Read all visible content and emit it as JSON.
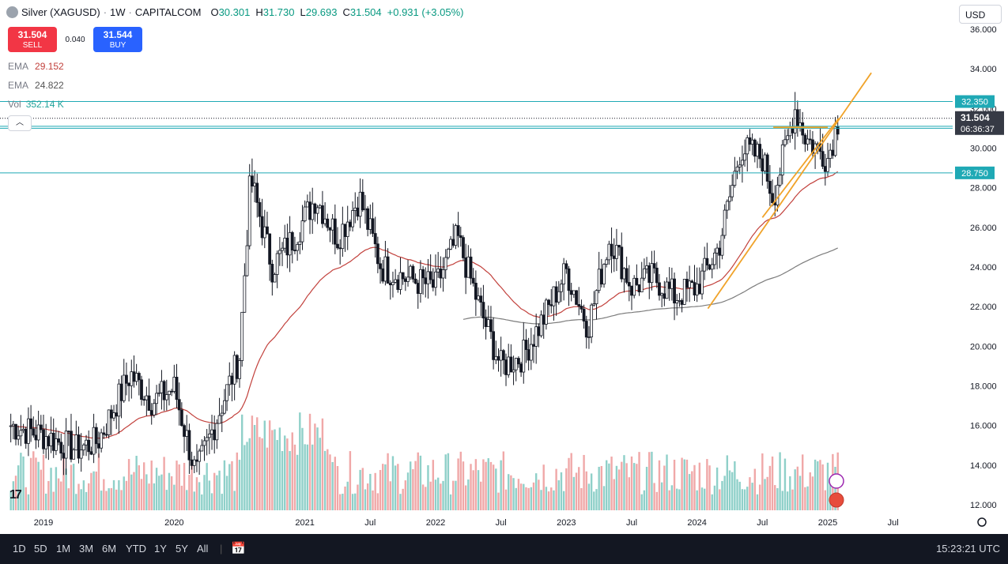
{
  "header": {
    "symbol_title": "Silver (XAGUSD)",
    "interval": "1W",
    "source": "CAPITALCOM",
    "open_label": "O",
    "open": "30.301",
    "high_label": "H",
    "high": "31.730",
    "low_label": "L",
    "low": "29.693",
    "close_label": "C",
    "close": "31.504",
    "change": "+0.931 (+3.05%)"
  },
  "trade": {
    "sell_price": "31.504",
    "sell_label": "SELL",
    "spread": "0.040",
    "buy_price": "31.544",
    "buy_label": "BUY"
  },
  "indicators": [
    {
      "name": "EMA",
      "value": "29.152",
      "color": "#c2413c"
    },
    {
      "name": "EMA",
      "value": "24.822",
      "color": "#555555"
    },
    {
      "name": "Vol",
      "value": "352.14 K",
      "color": "#22a39a"
    }
  ],
  "currency": "USD",
  "bottom": {
    "timeframes": [
      "1D",
      "5D",
      "1M",
      "3M",
      "6M",
      "YTD",
      "1Y",
      "5Y",
      "All"
    ],
    "clock": "15:23:21 UTC"
  },
  "chart_data": {
    "type": "candlestick",
    "ylim": [
      12.0,
      36.0
    ],
    "y_ticks": [
      "12.000",
      "14.000",
      "16.000",
      "18.000",
      "20.000",
      "22.000",
      "24.000",
      "26.000",
      "28.000",
      "30.000",
      "32.000",
      "34.000",
      "36.000"
    ],
    "x_ticks": [
      "2019",
      "2020",
      "2021",
      "Jul",
      "2022",
      "Jul",
      "2023",
      "Jul",
      "2024",
      "Jul",
      "2025",
      "Jul"
    ],
    "horizontal_levels": [
      {
        "label": "32.350",
        "value": 32.35
      },
      {
        "label": "31.000",
        "value": 31.0
      },
      {
        "label": "28.750",
        "value": 28.75
      },
      {
        "label": "",
        "value": 31.1
      }
    ],
    "current_price": {
      "value": 31.504,
      "label": "31.504",
      "countdown": "06:36:37"
    },
    "approx_weekly_close_path": [
      [
        "2018-10",
        16.0
      ],
      [
        "2019-01",
        15.5
      ],
      [
        "2019-04",
        14.8
      ],
      [
        "2019-06",
        15.2
      ],
      [
        "2019-08",
        17.5
      ],
      [
        "2019-09",
        18.6
      ],
      [
        "2019-11",
        17.2
      ],
      [
        "2020-01",
        17.9
      ],
      [
        "2020-03",
        13.5
      ],
      [
        "2020-05",
        16.5
      ],
      [
        "2020-07",
        19.5
      ],
      [
        "2020-08",
        28.5
      ],
      [
        "2020-10",
        24.0
      ],
      [
        "2020-12",
        25.5
      ],
      [
        "2021-02",
        27.5
      ],
      [
        "2021-04",
        25.5
      ],
      [
        "2021-06",
        27.5
      ],
      [
        "2021-08",
        24.0
      ],
      [
        "2021-10",
        23.5
      ],
      [
        "2022-01",
        23.0
      ],
      [
        "2022-03",
        25.5
      ],
      [
        "2022-05",
        22.0
      ],
      [
        "2022-07",
        19.0
      ],
      [
        "2022-09",
        19.5
      ],
      [
        "2022-11",
        21.5
      ],
      [
        "2023-01",
        23.8
      ],
      [
        "2023-03",
        21.0
      ],
      [
        "2023-05",
        25.5
      ],
      [
        "2023-07",
        23.0
      ],
      [
        "2023-09",
        23.5
      ],
      [
        "2023-11",
        22.5
      ],
      [
        "2024-01",
        23.0
      ],
      [
        "2024-03",
        25.0
      ],
      [
        "2024-05",
        30.0
      ],
      [
        "2024-07",
        29.5
      ],
      [
        "2024-08",
        27.5
      ],
      [
        "2024-10",
        32.0
      ],
      [
        "2024-11",
        30.5
      ],
      [
        "2025-01",
        29.5
      ],
      [
        "2025-02",
        31.5
      ]
    ],
    "trendlines": [
      {
        "from": [
          "2024-02",
          21.9
        ],
        "to": [
          "2025-05",
          33.8
        ]
      },
      {
        "from": [
          "2024-07",
          26.5
        ],
        "to": [
          "2025-02",
          31.5
        ]
      },
      {
        "from": [
          "2024-08",
          31.05
        ],
        "to": [
          "2025-01",
          31.05
        ]
      }
    ]
  }
}
